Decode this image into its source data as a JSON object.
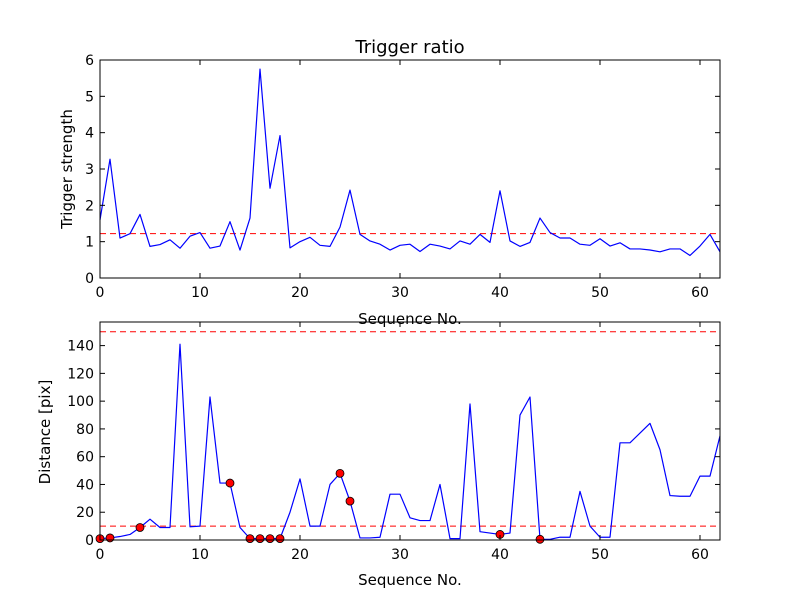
{
  "chart_data": [
    {
      "type": "line",
      "title": "Trigger ratio",
      "xlabel": "Sequence No.",
      "ylabel": "Trigger strength",
      "xlim": [
        0,
        62
      ],
      "ylim": [
        0,
        6
      ],
      "xticks": [
        "0",
        "10",
        "20",
        "30",
        "40",
        "50",
        "60"
      ],
      "yticks": [
        "0",
        "1",
        "2",
        "3",
        "4",
        "5",
        "6"
      ],
      "grid": false,
      "series": [
        {
          "color": "#0000ff",
          "x": [
            0,
            1,
            2,
            3,
            4,
            5,
            6,
            7,
            8,
            9,
            10,
            11,
            12,
            13,
            14,
            15,
            16,
            17,
            18,
            19,
            20,
            21,
            22,
            23,
            24,
            25,
            26,
            27,
            28,
            29,
            30,
            31,
            32,
            33,
            34,
            35,
            36,
            37,
            38,
            39,
            40,
            41,
            42,
            43,
            44,
            45,
            46,
            47,
            48,
            49,
            50,
            51,
            52,
            53,
            54,
            55,
            56,
            57,
            58,
            59,
            60,
            61,
            62
          ],
          "y": [
            1.6,
            3.27,
            1.1,
            1.22,
            1.75,
            0.87,
            0.92,
            1.05,
            0.82,
            1.15,
            1.25,
            0.82,
            0.88,
            1.55,
            0.77,
            1.65,
            5.75,
            2.47,
            3.92,
            0.83,
            1.0,
            1.12,
            0.9,
            0.87,
            1.4,
            2.42,
            1.2,
            1.02,
            0.93,
            0.77,
            0.9,
            0.93,
            0.73,
            0.93,
            0.88,
            0.8,
            1.02,
            0.93,
            1.2,
            0.98,
            2.4,
            1.02,
            0.87,
            0.98,
            1.65,
            1.25,
            1.1,
            1.1,
            0.93,
            0.9,
            1.08,
            0.88,
            0.97,
            0.8,
            0.8,
            0.77,
            0.72,
            0.8,
            0.8,
            0.62,
            0.88,
            1.2,
            0.72
          ]
        }
      ],
      "hlines": [
        {
          "y": 1.22,
          "color": "#ff0000",
          "style": "dashed"
        }
      ]
    },
    {
      "type": "line",
      "title": "",
      "xlabel": "Sequence No.",
      "ylabel": "Distance [pix]",
      "xlim": [
        0,
        62
      ],
      "ylim": [
        0,
        157
      ],
      "xticks": [
        "0",
        "10",
        "20",
        "30",
        "40",
        "50",
        "60"
      ],
      "yticks": [
        "0",
        "20",
        "40",
        "60",
        "80",
        "100",
        "120",
        "140"
      ],
      "grid": false,
      "series": [
        {
          "color": "#0000ff",
          "x": [
            0,
            1,
            2,
            3,
            4,
            5,
            6,
            7,
            8,
            9,
            10,
            11,
            12,
            13,
            14,
            15,
            16,
            17,
            18,
            19,
            20,
            21,
            22,
            23,
            24,
            25,
            26,
            27,
            28,
            29,
            30,
            31,
            32,
            33,
            34,
            35,
            36,
            37,
            38,
            39,
            40,
            41,
            42,
            43,
            44,
            45,
            46,
            47,
            48,
            49,
            50,
            51,
            52,
            53,
            54,
            55,
            56,
            57,
            58,
            59,
            60,
            61,
            62
          ],
          "y": [
            1,
            1.5,
            2.5,
            4,
            9,
            15,
            9,
            9,
            141,
            9.5,
            10,
            103,
            41,
            41,
            9,
            1,
            1,
            1,
            1,
            20,
            44,
            10,
            10,
            40,
            48,
            28,
            1.5,
            1.5,
            2,
            33,
            33,
            16,
            14,
            14,
            40,
            1,
            1,
            98,
            6,
            5,
            4,
            5,
            90,
            103,
            0.5,
            0.5,
            2,
            2,
            35,
            10,
            2,
            2,
            70,
            70,
            77,
            84,
            65,
            32,
            31.5,
            31.5,
            46,
            46,
            75
          ]
        }
      ],
      "markers": {
        "color": "#ff0000",
        "x": [
          0,
          1,
          4,
          13,
          15,
          16,
          17,
          18,
          24,
          25,
          40,
          44
        ],
        "y": [
          1,
          1.5,
          9,
          41,
          1,
          1,
          1,
          1,
          48,
          28,
          4,
          0.5
        ]
      },
      "hlines": [
        {
          "y": 10,
          "color": "#ff0000",
          "style": "dashed"
        },
        {
          "y": 150,
          "color": "#ff0000",
          "style": "dashed"
        }
      ]
    }
  ]
}
